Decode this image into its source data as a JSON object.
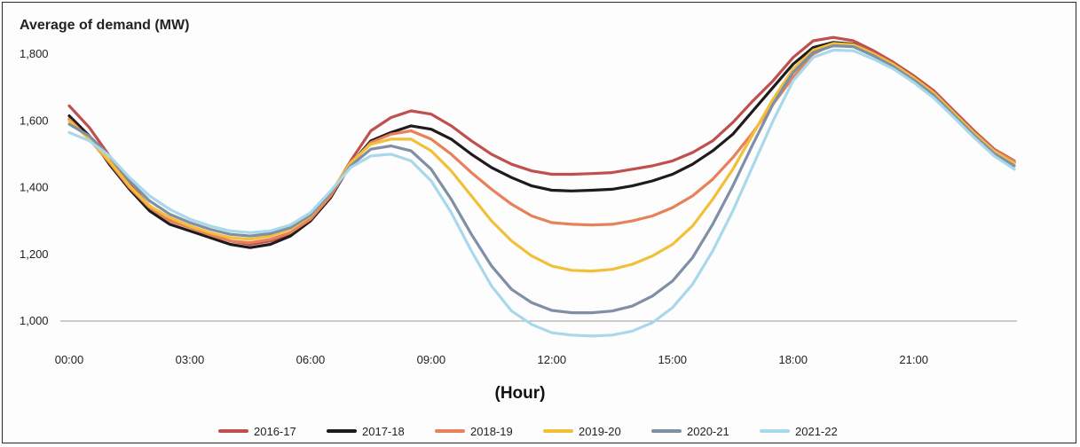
{
  "chart_data": {
    "type": "line",
    "title": "Average of demand (MW)",
    "subtitle": "",
    "xlabel": "(Hour)",
    "ylabel": "",
    "ylim": [
      950,
      1870
    ],
    "xlim": [
      0,
      23.5
    ],
    "y_ticks": [
      1000,
      1200,
      1400,
      1600,
      1800
    ],
    "y_tick_labels": [
      "1,000",
      "1,200",
      "1,400",
      "1,600",
      "1,800"
    ],
    "x_ticks": [
      0,
      3,
      6,
      9,
      12,
      15,
      18,
      21
    ],
    "x_tick_labels": [
      "00:00",
      "03:00",
      "06:00",
      "09:00",
      "12:00",
      "15:00",
      "18:00",
      "21:00"
    ],
    "grid": false,
    "baseline_value": 1000,
    "legend_position": "bottom",
    "x": [
      0,
      0.5,
      1,
      1.5,
      2,
      2.5,
      3,
      3.5,
      4,
      4.5,
      5,
      5.5,
      6,
      6.5,
      7,
      7.5,
      8,
      8.5,
      9,
      9.5,
      10,
      10.5,
      11,
      11.5,
      12,
      12.5,
      13,
      13.5,
      14,
      14.5,
      15,
      15.5,
      16,
      16.5,
      17,
      17.5,
      18,
      18.5,
      19,
      19.5,
      20,
      20.5,
      21,
      21.5,
      22,
      22.5,
      23,
      23.5
    ],
    "series": [
      {
        "name": "2016-17",
        "color": "#c0504d",
        "values": [
          1645,
          1580,
          1495,
          1410,
          1345,
          1305,
          1285,
          1260,
          1240,
          1230,
          1240,
          1260,
          1310,
          1380,
          1480,
          1570,
          1610,
          1630,
          1620,
          1585,
          1540,
          1500,
          1470,
          1450,
          1440,
          1440,
          1442,
          1445,
          1455,
          1465,
          1480,
          1505,
          1540,
          1595,
          1660,
          1720,
          1790,
          1840,
          1850,
          1840,
          1810,
          1775,
          1735,
          1690,
          1630,
          1570,
          1515,
          1480
        ]
      },
      {
        "name": "2017-18",
        "color": "#1f1a1c",
        "values": [
          1615,
          1555,
          1470,
          1395,
          1330,
          1290,
          1270,
          1250,
          1230,
          1220,
          1230,
          1255,
          1300,
          1370,
          1470,
          1540,
          1565,
          1585,
          1575,
          1545,
          1500,
          1460,
          1430,
          1405,
          1392,
          1390,
          1392,
          1395,
          1405,
          1420,
          1440,
          1470,
          1510,
          1560,
          1630,
          1700,
          1770,
          1820,
          1835,
          1830,
          1800,
          1770,
          1730,
          1685,
          1625,
          1565,
          1510,
          1475
        ]
      },
      {
        "name": "2018-19",
        "color": "#e8805a",
        "values": [
          1605,
          1545,
          1475,
          1400,
          1340,
          1300,
          1280,
          1258,
          1240,
          1235,
          1245,
          1265,
          1305,
          1375,
          1470,
          1535,
          1560,
          1570,
          1545,
          1500,
          1445,
          1395,
          1350,
          1315,
          1295,
          1290,
          1288,
          1290,
          1300,
          1315,
          1340,
          1375,
          1425,
          1490,
          1565,
          1650,
          1730,
          1800,
          1830,
          1828,
          1802,
          1770,
          1730,
          1685,
          1625,
          1565,
          1512,
          1478
        ]
      },
      {
        "name": "2019-20",
        "color": "#f2c038",
        "values": [
          1600,
          1545,
          1480,
          1405,
          1345,
          1310,
          1285,
          1265,
          1250,
          1245,
          1255,
          1275,
          1315,
          1385,
          1475,
          1530,
          1545,
          1545,
          1510,
          1450,
          1375,
          1300,
          1240,
          1195,
          1165,
          1152,
          1150,
          1155,
          1170,
          1195,
          1230,
          1285,
          1365,
          1455,
          1560,
          1665,
          1755,
          1812,
          1832,
          1828,
          1800,
          1768,
          1728,
          1682,
          1622,
          1562,
          1508,
          1472
        ]
      },
      {
        "name": "2020-21",
        "color": "#7f8fa6",
        "values": [
          1590,
          1555,
          1495,
          1420,
          1360,
          1320,
          1295,
          1275,
          1260,
          1255,
          1262,
          1280,
          1318,
          1385,
          1465,
          1515,
          1525,
          1510,
          1455,
          1365,
          1260,
          1165,
          1095,
          1055,
          1032,
          1025,
          1025,
          1030,
          1045,
          1075,
          1120,
          1190,
          1290,
          1405,
          1530,
          1650,
          1745,
          1805,
          1825,
          1822,
          1795,
          1762,
          1722,
          1676,
          1616,
          1556,
          1502,
          1465
        ]
      },
      {
        "name": "2021-22",
        "color": "#a8d8ea",
        "values": [
          1565,
          1540,
          1495,
          1430,
          1375,
          1335,
          1305,
          1285,
          1270,
          1265,
          1270,
          1288,
          1325,
          1390,
          1460,
          1495,
          1500,
          1480,
          1420,
          1325,
          1210,
          1105,
          1030,
          990,
          965,
          958,
          955,
          958,
          970,
          995,
          1040,
          1110,
          1210,
          1330,
          1465,
          1600,
          1720,
          1790,
          1812,
          1810,
          1785,
          1755,
          1715,
          1668,
          1610,
          1550,
          1495,
          1455
        ]
      }
    ]
  }
}
